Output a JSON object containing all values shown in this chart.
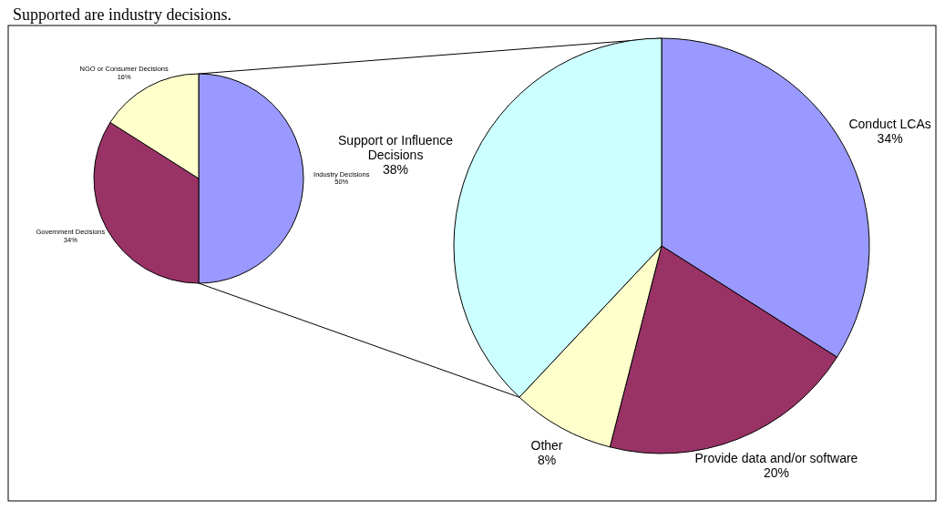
{
  "chart_data": [
    {
      "type": "pie",
      "annotations": [
        "Supported are industry decisions."
      ],
      "categories": [
        "Industry Decisions",
        "Government Decisions",
        "NGO or Consumer Decisions"
      ],
      "values": [
        50,
        34,
        16
      ],
      "colors": [
        "#9999ff",
        "#993366",
        "#ffffcc"
      ],
      "value_labels": [
        "50%",
        "34%",
        "16%"
      ]
    },
    {
      "type": "pie",
      "categories": [
        "Conduct LCAs",
        "Provide data and/or software",
        "Other",
        "Support or Influence Decisions"
      ],
      "values": [
        34,
        20,
        8,
        38
      ],
      "colors": [
        "#9999ff",
        "#993366",
        "#ffffcc",
        "#ccffff"
      ],
      "value_labels": [
        "34%",
        "20%",
        "8%",
        "38%"
      ]
    }
  ]
}
